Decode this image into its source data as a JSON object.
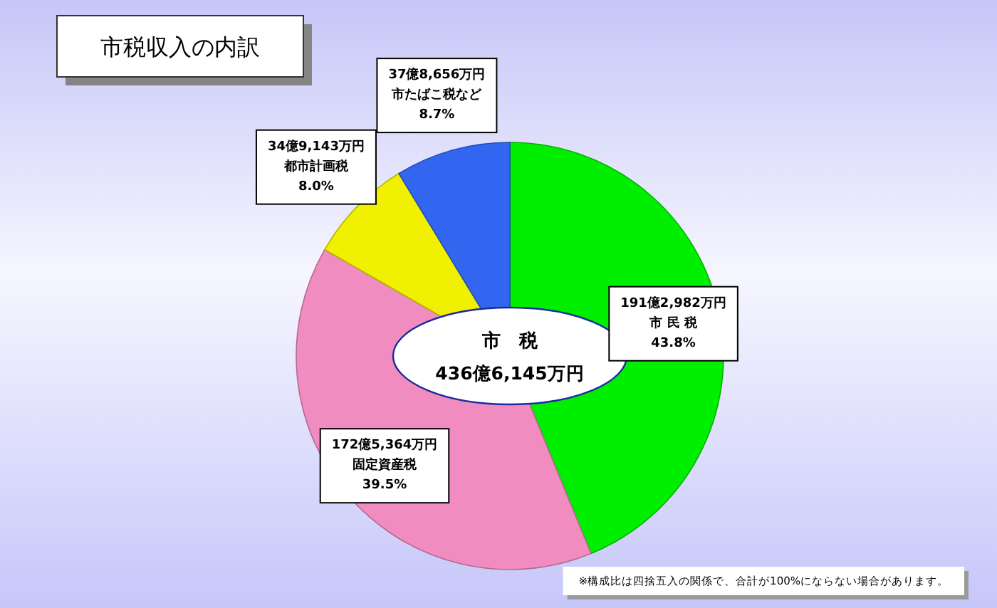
{
  "chart_data": {
    "type": "pie",
    "title": "市税収入の内訳",
    "categories": [
      "市 民 税",
      "固定資産税",
      "都市計画税",
      "市たばこ税など"
    ],
    "values": [
      43.8,
      39.5,
      8.0,
      8.7
    ],
    "colors": [
      "#00ee00",
      "#f08cc0",
      "#f0f000",
      "#3366f0"
    ],
    "value_labels": [
      "43.8%",
      "39.5%",
      "8.0%",
      "8.7%"
    ],
    "annotations": [
      {
        "text": "191億2,982万円",
        "x": "市 民 税"
      },
      {
        "text": "172億5,364万円",
        "x": "固定資産税"
      },
      {
        "text": "34億9,143万円",
        "x": "都市計画税"
      },
      {
        "text": "37億8,656万円",
        "x": "市たばこ税など"
      },
      "市　税",
      "436億6,145万円",
      "※構成比は四捨五入の関係で、合計が100%にならない場合があります。"
    ]
  }
}
